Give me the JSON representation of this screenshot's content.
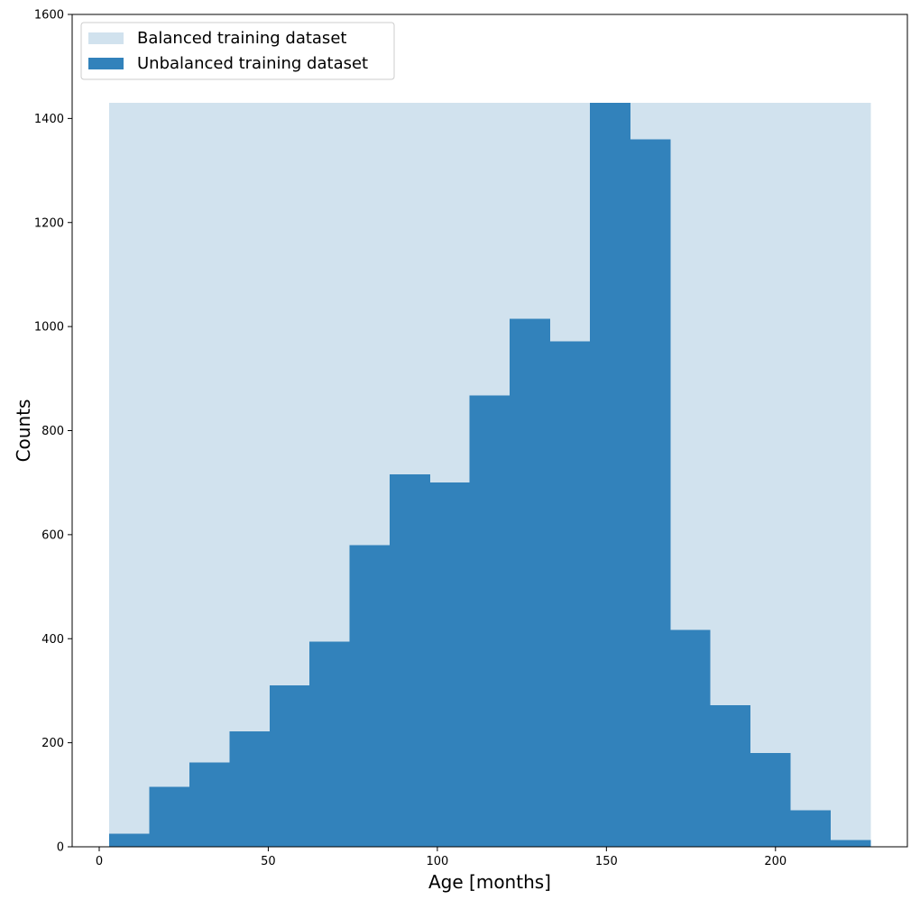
{
  "chart_data": {
    "type": "bar",
    "title": "",
    "xlabel": "Age [months]",
    "ylabel": "Counts",
    "xlim": [
      -8,
      239
    ],
    "ylim": [
      0,
      1600
    ],
    "xticks": [
      0,
      50,
      100,
      150,
      200
    ],
    "yticks": [
      0,
      200,
      400,
      600,
      800,
      1000,
      1200,
      1400,
      1600
    ],
    "grid": false,
    "legend_position": "top-left",
    "bin_edges": [
      3,
      14.84,
      26.68,
      38.52,
      50.36,
      62.2,
      74.04,
      85.88,
      97.72,
      109.56,
      121.4,
      133.24,
      145.08,
      156.92,
      168.76,
      180.6,
      192.44,
      204.28,
      216.12,
      228
    ],
    "series": [
      {
        "name": "Balanced training dataset",
        "color": "#d1e2ee",
        "values": [
          1430,
          1430,
          1430,
          1430,
          1430,
          1430,
          1430,
          1430,
          1430,
          1430,
          1430,
          1430,
          1430,
          1430,
          1430,
          1430,
          1430,
          1430,
          1430
        ]
      },
      {
        "name": "Unbalanced training dataset",
        "color": "#3282bb",
        "values": [
          25,
          115,
          162,
          222,
          310,
          394,
          580,
          716,
          700,
          868,
          1015,
          972,
          1430,
          1360,
          417,
          272,
          180,
          70,
          13
        ]
      }
    ]
  }
}
